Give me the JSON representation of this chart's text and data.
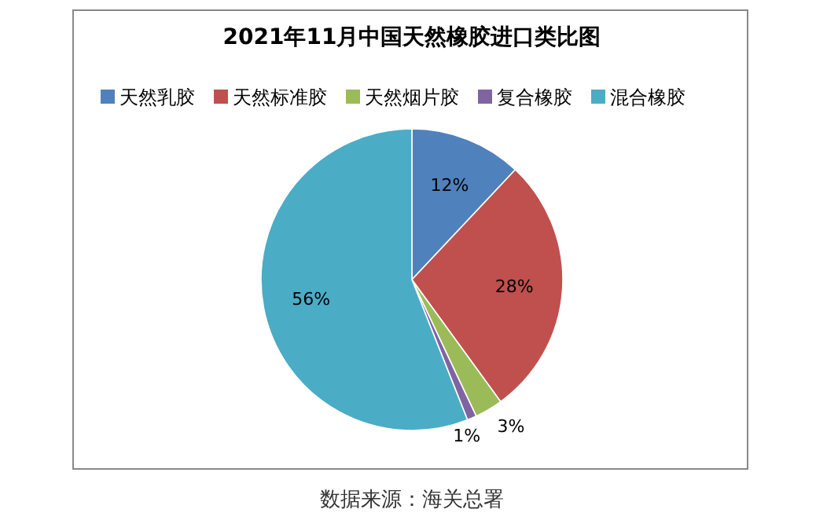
{
  "chart_data": {
    "type": "pie",
    "title": "2021年11月中国天然橡胶进口类比图",
    "categories": [
      "天然乳胶",
      "天然标准胶",
      "天然烟片胶",
      "复合橡胶",
      "混合橡胶"
    ],
    "values": [
      12,
      28,
      3,
      1,
      56
    ],
    "colors": [
      "#4f81bd",
      "#c0504d",
      "#9bbb59",
      "#8064a2",
      "#4bacc6"
    ],
    "value_labels": [
      "12%",
      "28%",
      "3%",
      "1%",
      "56%"
    ],
    "legend": "top",
    "annotations": [
      "数据来源：海关总署"
    ]
  }
}
